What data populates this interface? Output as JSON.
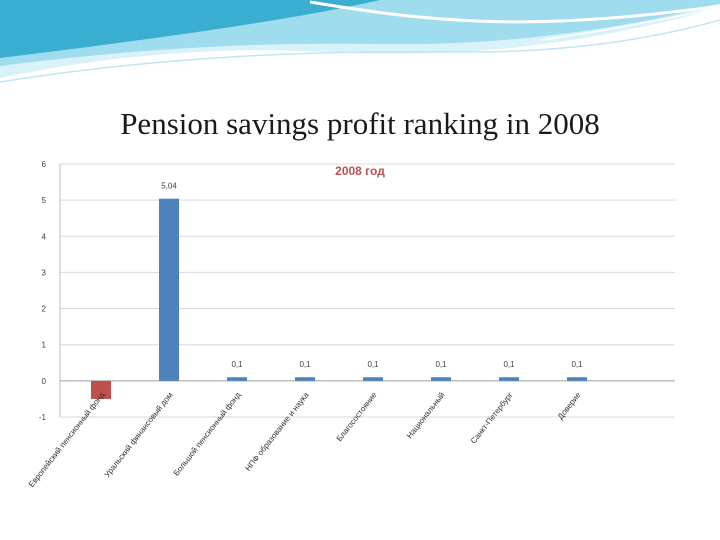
{
  "slide": {
    "title": "Pension savings profit ranking  in 2008"
  },
  "chart_data": {
    "type": "bar",
    "title": "2008 год",
    "title_color": "#c0504d",
    "categories": [
      "Европейский пенсионный фонд",
      "Уральский финансовый дом",
      "Большой пенсионный фонд",
      "НПФ образование и наука",
      "Благосостояние",
      "Национальный",
      "Санкт-Петербург",
      "Доверие"
    ],
    "values": [
      -0.5,
      5.04,
      0.1,
      0.1,
      0.1,
      0.1,
      0.1,
      0.1
    ],
    "data_labels": [
      "-0,5",
      "5,04",
      "0,1",
      "0,1",
      "0,1",
      "0,1",
      "0,1",
      "0,1"
    ],
    "bar_colors": [
      "#c0504d",
      "#4f81bd",
      "#4f81bd",
      "#4f81bd",
      "#4f81bd",
      "#4f81bd",
      "#4f81bd",
      "#4f81bd"
    ],
    "y_ticks": [
      "-1",
      "0",
      "1",
      "2",
      "3",
      "4",
      "5",
      "6"
    ],
    "ylim": [
      -1,
      6
    ],
    "grid": true,
    "xlabel": "",
    "ylabel": ""
  },
  "theme": {
    "wave_dark": "#2b9fc4",
    "wave_light": "#b9e6f4"
  }
}
